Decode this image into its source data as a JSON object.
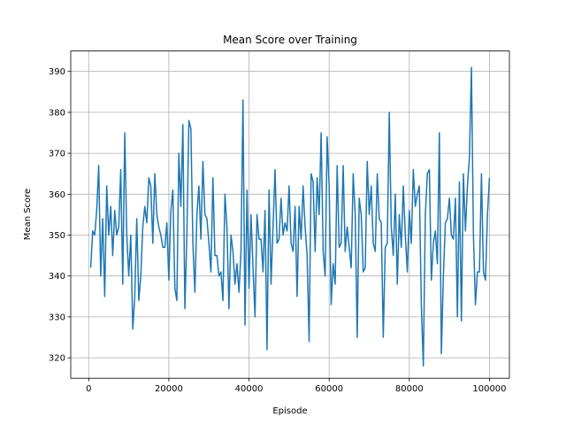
{
  "chart_data": {
    "type": "line",
    "title": "Mean Score over Training",
    "x_label": "Episode",
    "y_label": "Mean Score",
    "x": [
      500,
      1000,
      1500,
      2000,
      2500,
      3000,
      3500,
      4000,
      4500,
      5000,
      5500,
      6000,
      6500,
      7000,
      7500,
      8000,
      8500,
      9000,
      9500,
      10000,
      10500,
      11000,
      11500,
      12000,
      12500,
      13000,
      13500,
      14000,
      14500,
      15000,
      15500,
      16000,
      16500,
      17000,
      17500,
      18000,
      18500,
      19000,
      19500,
      20000,
      20500,
      21000,
      21500,
      22000,
      22500,
      23000,
      23500,
      24000,
      24500,
      25000,
      25500,
      26000,
      26500,
      27000,
      27500,
      28000,
      28500,
      29000,
      29500,
      30000,
      30500,
      31000,
      31500,
      32000,
      32500,
      33000,
      33500,
      34000,
      34500,
      35000,
      35500,
      36000,
      36500,
      37000,
      37500,
      38000,
      38500,
      39000,
      39500,
      40000,
      40500,
      41000,
      41500,
      42000,
      42500,
      43000,
      43500,
      44000,
      44500,
      45000,
      45500,
      46000,
      46500,
      47000,
      47500,
      48000,
      48500,
      49000,
      49500,
      50000,
      50500,
      51000,
      51500,
      52000,
      52500,
      53000,
      53500,
      54000,
      54500,
      55000,
      55500,
      56000,
      56500,
      57000,
      57500,
      58000,
      58500,
      59000,
      59500,
      60000,
      60500,
      61000,
      61500,
      62000,
      62500,
      63000,
      63500,
      64000,
      64500,
      65000,
      65500,
      66000,
      66500,
      67000,
      67500,
      68000,
      68500,
      69000,
      69500,
      70000,
      70500,
      71000,
      71500,
      72000,
      72500,
      73000,
      73500,
      74000,
      74500,
      75000,
      75500,
      76000,
      76500,
      77000,
      77500,
      78000,
      78500,
      79000,
      79500,
      80000,
      80500,
      81000,
      81500,
      82000,
      82500,
      83000,
      83500,
      84000,
      84500,
      85000,
      85500,
      86000,
      86500,
      87000,
      87500,
      88000,
      88500,
      89000,
      89500,
      90000,
      90500,
      91000,
      91500,
      92000,
      92500,
      93000,
      93500,
      94000,
      94500,
      95000,
      95500,
      96000,
      96500,
      97000,
      97500,
      98000,
      98500,
      99000,
      99500,
      100000
    ],
    "series": [
      {
        "name": "Mean Score",
        "color": "#1f77b4",
        "values": [
          342,
          351,
          350,
          356,
          367,
          340,
          354,
          335,
          362,
          350,
          357,
          345,
          356,
          350,
          352,
          366,
          338,
          375,
          350,
          340,
          350,
          327,
          335,
          354,
          334,
          340,
          352,
          357,
          353,
          364,
          362,
          348,
          365,
          355,
          352,
          350,
          347,
          347,
          353,
          339,
          356,
          361,
          337,
          334,
          370,
          357,
          377,
          332,
          350,
          378,
          376,
          348,
          336,
          355,
          362,
          349,
          368,
          355,
          354,
          348,
          341,
          364,
          345,
          345,
          340,
          341,
          334,
          360,
          352,
          332,
          350,
          346,
          338,
          343,
          336,
          346,
          383,
          328,
          361,
          337,
          355,
          342,
          330,
          355,
          349,
          349,
          341,
          356,
          322,
          361,
          338,
          352,
          366,
          348,
          349,
          359,
          350,
          353,
          351,
          362,
          348,
          346,
          357,
          335,
          357,
          349,
          362,
          352,
          345,
          324,
          365,
          363,
          346,
          364,
          355,
          375,
          346,
          340,
          374,
          362,
          333,
          343,
          338,
          367,
          347,
          348,
          367,
          346,
          352,
          347,
          342,
          365,
          355,
          325,
          359,
          355,
          341,
          342,
          368,
          355,
          362,
          348,
          346,
          365,
          354,
          353,
          325,
          347,
          348,
          380,
          352,
          345,
          360,
          338,
          355,
          347,
          362,
          350,
          341,
          356,
          348,
          366,
          357,
          360,
          362,
          333,
          318,
          355,
          365,
          366,
          339,
          348,
          351,
          343,
          375,
          321,
          340,
          353,
          354,
          359,
          350,
          349,
          359,
          330,
          363,
          329,
          365,
          351,
          362,
          369,
          391,
          350,
          333,
          341,
          341,
          365,
          341,
          339,
          355,
          364
        ]
      }
    ],
    "xlim": [
      -4475,
      104975
    ],
    "ylim": [
      315,
      395
    ],
    "xticks": [
      0,
      20000,
      40000,
      60000,
      80000,
      100000
    ],
    "yticks": [
      320,
      330,
      340,
      350,
      360,
      370,
      380,
      390
    ],
    "grid": true
  }
}
